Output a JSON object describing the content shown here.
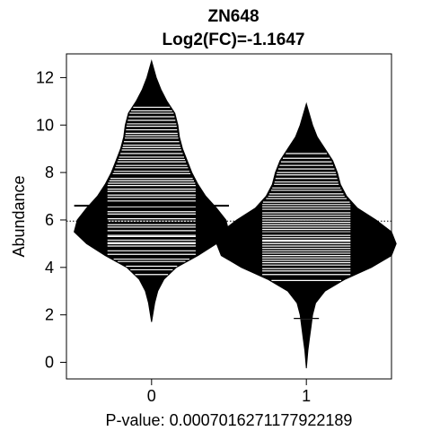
{
  "chart_data": {
    "type": "beanplot",
    "title": "ZN648",
    "subtitle": "Log2(FC)=-1.1647",
    "xlabel": "P-value: 0.000701627117792218​9",
    "ylabel": "Abundance",
    "ylim": [
      -0.7,
      13
    ],
    "xlim": [
      -0.55,
      1.55
    ],
    "yticks": [
      0,
      2,
      4,
      6,
      8,
      10,
      12
    ],
    "categories": [
      "0",
      "1"
    ],
    "overall_mean": 5.95,
    "groups": [
      {
        "category": "0",
        "mean": 6.6,
        "min": 1.7,
        "max": 12.7,
        "density": [
          [
            1.7,
            0.0
          ],
          [
            2.5,
            0.02
          ],
          [
            3.0,
            0.04
          ],
          [
            3.5,
            0.08
          ],
          [
            4.0,
            0.16
          ],
          [
            4.5,
            0.3
          ],
          [
            5.0,
            0.42
          ],
          [
            5.5,
            0.5
          ],
          [
            6.0,
            0.48
          ],
          [
            6.5,
            0.42
          ],
          [
            7.0,
            0.35
          ],
          [
            7.5,
            0.3
          ],
          [
            8.0,
            0.26
          ],
          [
            8.5,
            0.23
          ],
          [
            9.0,
            0.2
          ],
          [
            9.5,
            0.18
          ],
          [
            10.0,
            0.17
          ],
          [
            10.5,
            0.15
          ],
          [
            11.0,
            0.1
          ],
          [
            11.5,
            0.06
          ],
          [
            12.0,
            0.03
          ],
          [
            12.7,
            0.0
          ]
        ],
        "points": [
          3.7,
          3.9,
          4.05,
          4.25,
          4.35,
          4.55,
          4.7,
          4.9,
          5.0,
          5.05,
          5.15,
          5.3,
          5.35,
          5.55,
          5.7,
          5.8,
          5.95,
          6.05,
          6.25,
          6.35,
          6.55,
          6.6,
          6.8,
          6.95,
          7.05,
          7.2,
          7.3,
          7.45,
          7.55,
          7.65,
          7.75,
          7.95,
          8.05,
          8.2,
          8.3,
          8.45,
          8.55,
          8.65,
          8.8,
          8.95,
          9.05,
          9.15,
          9.3,
          9.45,
          9.55,
          9.65,
          9.8,
          9.95,
          10.05,
          10.2,
          10.35,
          10.5,
          10.6,
          10.75
        ]
      },
      {
        "category": "1",
        "mean": 5.45,
        "min": -0.25,
        "max": 10.9,
        "density": [
          [
            -0.25,
            0.0
          ],
          [
            0.5,
            0.01
          ],
          [
            1.0,
            0.02
          ],
          [
            1.5,
            0.03
          ],
          [
            2.0,
            0.04
          ],
          [
            2.5,
            0.06
          ],
          [
            3.0,
            0.12
          ],
          [
            3.5,
            0.25
          ],
          [
            4.0,
            0.42
          ],
          [
            4.5,
            0.55
          ],
          [
            5.0,
            0.58
          ],
          [
            5.5,
            0.55
          ],
          [
            6.0,
            0.45
          ],
          [
            6.5,
            0.33
          ],
          [
            7.0,
            0.26
          ],
          [
            7.5,
            0.22
          ],
          [
            8.0,
            0.2
          ],
          [
            8.5,
            0.17
          ],
          [
            9.0,
            0.12
          ],
          [
            9.5,
            0.07
          ],
          [
            10.0,
            0.04
          ],
          [
            10.9,
            0.0
          ]
        ],
        "points": [
          1.85,
          3.45,
          3.7,
          3.85,
          3.95,
          4.1,
          4.2,
          4.3,
          4.4,
          4.5,
          4.6,
          4.7,
          4.8,
          4.9,
          5.0,
          5.1,
          5.15,
          5.25,
          5.35,
          5.45,
          5.5,
          5.6,
          5.7,
          5.8,
          5.9,
          6.0,
          6.1,
          6.2,
          6.3,
          6.45,
          6.55,
          6.65,
          6.75,
          6.9,
          7.0,
          7.1,
          7.25,
          7.35,
          7.5,
          7.6,
          7.75,
          7.9,
          8.0,
          8.15,
          8.3,
          8.45,
          8.6,
          8.8
        ]
      }
    ]
  }
}
